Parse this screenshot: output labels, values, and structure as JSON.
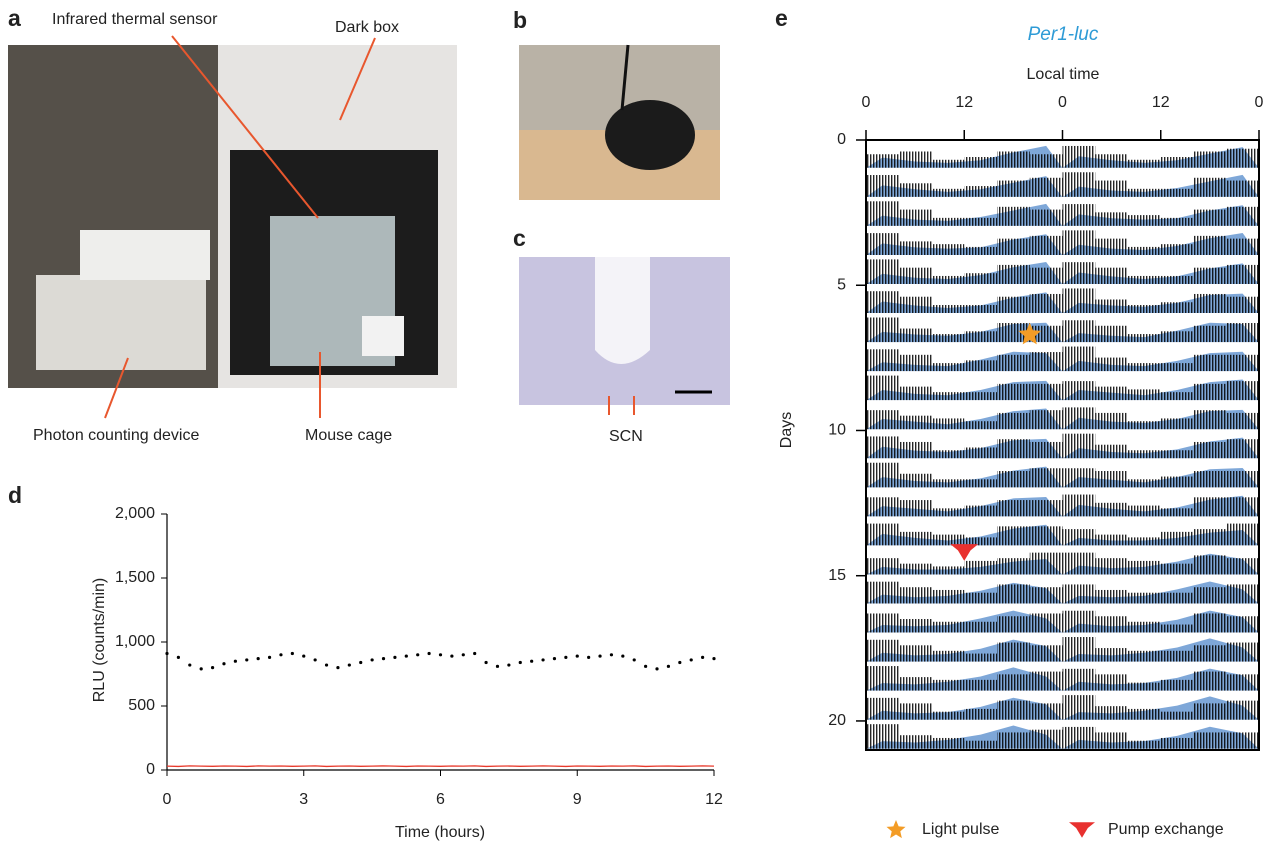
{
  "panels": {
    "a": {
      "label": "a",
      "annotations": [
        "Infrared thermal sensor",
        "Dark box",
        "Photon counting device",
        "Mouse cage"
      ]
    },
    "b": {
      "label": "b"
    },
    "c": {
      "label": "c",
      "annotation": "SCN"
    },
    "d": {
      "label": "d"
    },
    "e": {
      "label": "e"
    }
  },
  "chart_data": [
    {
      "type": "scatter",
      "x_label": "Time (hours)",
      "y_label": "RLU (counts/min)",
      "xlim": [
        0,
        12
      ],
      "ylim": [
        0,
        2000
      ],
      "xticks": [
        0,
        3,
        6,
        9,
        12
      ],
      "yticks": [
        0,
        500,
        {
          "value": 1000,
          "label": "1,000"
        },
        {
          "value": 1500,
          "label": "1,500"
        },
        {
          "value": 2000,
          "label": "2,000"
        }
      ],
      "x": [
        0,
        0.25,
        0.5,
        0.75,
        1,
        1.25,
        1.5,
        1.75,
        2,
        2.25,
        2.5,
        2.75,
        3,
        3.25,
        3.5,
        3.75,
        4,
        4.25,
        4.5,
        4.75,
        5,
        5.25,
        5.5,
        5.75,
        6,
        6.25,
        6.5,
        6.75,
        7,
        7.25,
        7.5,
        7.75,
        8,
        8.25,
        8.5,
        8.75,
        9,
        9.25,
        9.5,
        9.75,
        10,
        10.25,
        10.5,
        10.75,
        11,
        11.25,
        11.5,
        11.75,
        12
      ],
      "series": [
        {
          "type": "scatter",
          "color": "#000000",
          "values": [
            910,
            880,
            820,
            790,
            800,
            830,
            850,
            860,
            870,
            880,
            900,
            910,
            890,
            860,
            820,
            800,
            820,
            840,
            860,
            870,
            880,
            890,
            900,
            910,
            900,
            890,
            900,
            910,
            840,
            810,
            820,
            840,
            850,
            860,
            870,
            880,
            890,
            880,
            890,
            900,
            890,
            860,
            810,
            790,
            810,
            840,
            860,
            880,
            870
          ]
        },
        {
          "type": "line",
          "color": "#e8392b",
          "values": [
            30,
            28,
            32,
            30,
            29,
            31,
            30,
            28,
            32,
            30,
            31,
            29,
            30,
            32,
            28,
            30,
            31,
            29,
            30,
            32,
            30,
            28,
            31,
            30,
            29,
            31,
            30,
            32,
            28,
            30,
            31,
            29,
            30,
            32,
            30,
            28,
            31,
            30,
            29,
            31,
            30,
            32,
            28,
            30,
            31,
            29,
            30,
            32,
            30
          ]
        }
      ]
    },
    {
      "type": "actogram",
      "title": "Per1-luc",
      "x_label": "Local time",
      "y_label": "Days",
      "xlim": [
        0,
        48
      ],
      "ylim": [
        0,
        21
      ],
      "xticks": [
        0,
        12,
        {
          "value": 24,
          "label": "0"
        },
        {
          "value": 36,
          "label": "12"
        },
        {
          "value": 48,
          "label": "0"
        }
      ],
      "yticks": [
        0,
        5,
        10,
        15,
        20
      ],
      "hours": [
        0,
        4,
        8,
        12,
        16,
        20
      ],
      "luminescence": {
        "color": "#7ea7d8",
        "values": [
          [
            0.4,
            0.25,
            0.2,
            0.3,
            0.6,
            0.85
          ],
          [
            0.45,
            0.3,
            0.2,
            0.3,
            0.55,
            0.8
          ],
          [
            0.4,
            0.25,
            0.2,
            0.35,
            0.6,
            0.85
          ],
          [
            0.45,
            0.3,
            0.25,
            0.3,
            0.6,
            0.8
          ],
          [
            0.4,
            0.25,
            0.2,
            0.35,
            0.65,
            0.85
          ],
          [
            0.45,
            0.3,
            0.2,
            0.3,
            0.6,
            0.8
          ],
          [
            0.4,
            0.3,
            0.25,
            0.4,
            0.7,
            0.75
          ],
          [
            0.35,
            0.25,
            0.2,
            0.45,
            0.75,
            0.7
          ],
          [
            0.4,
            0.25,
            0.2,
            0.4,
            0.7,
            0.75
          ],
          [
            0.4,
            0.3,
            0.2,
            0.4,
            0.7,
            0.8
          ],
          [
            0.45,
            0.3,
            0.25,
            0.4,
            0.7,
            0.75
          ],
          [
            0.4,
            0.25,
            0.2,
            0.35,
            0.65,
            0.8
          ],
          [
            0.4,
            0.3,
            0.2,
            0.4,
            0.7,
            0.75
          ],
          [
            0.45,
            0.3,
            0.2,
            0.35,
            0.65,
            0.8
          ],
          [
            0.3,
            0.2,
            0.2,
            0.3,
            0.5,
            0.6
          ],
          [
            0.35,
            0.25,
            0.3,
            0.5,
            0.8,
            0.6
          ],
          [
            0.3,
            0.25,
            0.3,
            0.55,
            0.85,
            0.55
          ],
          [
            0.35,
            0.25,
            0.3,
            0.5,
            0.85,
            0.6
          ],
          [
            0.3,
            0.25,
            0.35,
            0.55,
            0.9,
            0.55
          ],
          [
            0.35,
            0.25,
            0.3,
            0.5,
            0.85,
            0.6
          ],
          [
            0.3,
            0.25,
            0.35,
            0.55,
            0.9,
            0.55
          ],
          [
            0.35,
            0.25,
            0.3,
            0.5,
            0.85,
            0.6
          ]
        ]
      },
      "activity": {
        "color": "#000000",
        "values": [
          [
            0.5,
            0.6,
            0.3,
            0.4,
            0.6,
            0.5
          ],
          [
            0.8,
            0.5,
            0.3,
            0.4,
            0.6,
            0.7
          ],
          [
            0.9,
            0.6,
            0.3,
            0.3,
            0.7,
            0.6
          ],
          [
            0.8,
            0.5,
            0.4,
            0.3,
            0.6,
            0.7
          ],
          [
            0.9,
            0.6,
            0.3,
            0.4,
            0.7,
            0.6
          ],
          [
            0.8,
            0.6,
            0.3,
            0.3,
            0.6,
            0.7
          ],
          [
            0.9,
            0.5,
            0.3,
            0.4,
            0.7,
            0.6
          ],
          [
            0.8,
            0.6,
            0.3,
            0.4,
            0.6,
            0.7
          ],
          [
            0.9,
            0.5,
            0.3,
            0.3,
            0.6,
            0.6
          ],
          [
            0.7,
            0.5,
            0.4,
            0.3,
            0.6,
            0.7
          ],
          [
            0.8,
            0.6,
            0.3,
            0.4,
            0.7,
            0.6
          ],
          [
            0.9,
            0.5,
            0.3,
            0.3,
            0.6,
            0.7
          ],
          [
            0.7,
            0.6,
            0.3,
            0.4,
            0.6,
            0.6
          ],
          [
            0.8,
            0.5,
            0.4,
            0.3,
            0.7,
            0.7
          ],
          [
            0.6,
            0.4,
            0.3,
            0.5,
            0.6,
            0.8
          ],
          [
            0.8,
            0.6,
            0.5,
            0.4,
            0.7,
            0.6
          ],
          [
            0.7,
            0.5,
            0.4,
            0.4,
            0.6,
            0.7
          ],
          [
            0.8,
            0.6,
            0.4,
            0.3,
            0.7,
            0.6
          ],
          [
            0.9,
            0.5,
            0.4,
            0.4,
            0.6,
            0.7
          ],
          [
            0.8,
            0.6,
            0.3,
            0.4,
            0.7,
            0.6
          ],
          [
            0.9,
            0.5,
            0.4,
            0.3,
            0.6,
            0.7
          ],
          [
            0.8,
            0.6,
            0.3,
            0.4,
            0.6,
            0.6
          ]
        ]
      },
      "events": [
        {
          "name": "Light pulse",
          "marker": "star",
          "color": "#f39c26",
          "day": 6.7,
          "hour": 20
        },
        {
          "name": "Pump exchange",
          "marker": "arrow",
          "color": "#e8312f",
          "day": 14.2,
          "hour": 12
        }
      ]
    }
  ]
}
